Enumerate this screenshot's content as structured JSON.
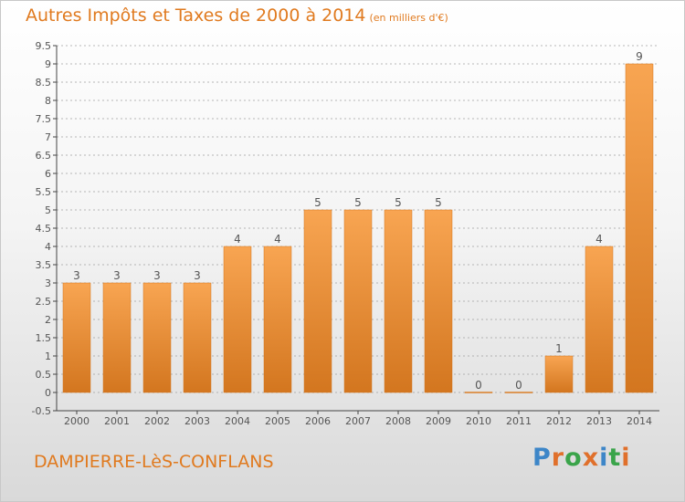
{
  "title": "Autres Impôts et Taxes de 2000 à 2014",
  "unit_note": "(en milliers d'€)",
  "commune": "DAMPIERRE-LèS-CONFLANS",
  "logo": {
    "text": "Proxiti",
    "letter_colors": [
      "#3d86c8",
      "#e0702b",
      "#3aa44a",
      "#e0702b",
      "#3d86c8",
      "#3aa44a",
      "#e0702b"
    ]
  },
  "colors": {
    "accent": "#e07a1f",
    "bar_light": "#f8a552",
    "bar_dark": "#d3761f",
    "axis": "#444444",
    "grid": "#a0a0a0"
  },
  "chart_data": {
    "type": "bar",
    "categories": [
      "2000",
      "2001",
      "2002",
      "2003",
      "2004",
      "2005",
      "2006",
      "2007",
      "2008",
      "2009",
      "2010",
      "2011",
      "2012",
      "2013",
      "2014"
    ],
    "values": [
      3,
      3,
      3,
      3,
      4,
      4,
      5,
      5,
      5,
      5,
      0,
      0,
      1,
      4,
      9
    ],
    "value_labels": [
      "3",
      "3",
      "3",
      "3",
      "4",
      "4",
      "5",
      "5",
      "5",
      "5",
      "0",
      "0",
      "1",
      "4",
      "9"
    ],
    "ylim": [
      -0.5,
      9.5
    ],
    "yticks": [
      "-0.5",
      "0",
      "0.5",
      "1",
      "1.5",
      "2",
      "2.5",
      "3",
      "3.5",
      "4",
      "4.5",
      "5",
      "5.5",
      "6",
      "6.5",
      "7",
      "7.5",
      "8",
      "8.5",
      "9",
      "9.5"
    ],
    "ytick_values": [
      -0.5,
      0,
      0.5,
      1,
      1.5,
      2,
      2.5,
      3,
      3.5,
      4,
      4.5,
      5,
      5.5,
      6,
      6.5,
      7,
      7.5,
      8,
      8.5,
      9,
      9.5
    ],
    "grid": "horizontal dashed"
  }
}
